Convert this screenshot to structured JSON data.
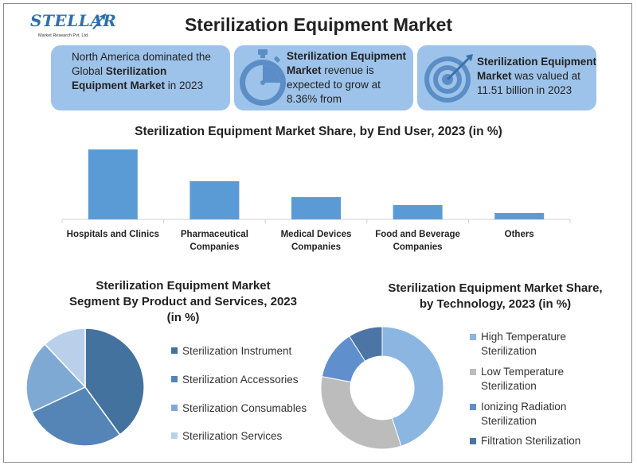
{
  "logo": {
    "name": "STELLAR",
    "subtitle": "Market Research Pvt. Ltd."
  },
  "title": "Sterilization Equipment Market",
  "info_boxes": [
    {
      "pre": "North America dominated the Global ",
      "bold": "Sterilization Equipment Market",
      "post": " in 2023"
    },
    {
      "bold": "Sterilization Equipment Market",
      "post": " revenue is expected to grow at 8.36% from"
    },
    {
      "bold": "Sterilization Equipment Market",
      "post": " was valued at 11.51 billion in 2023"
    }
  ],
  "colors": {
    "box_bg": "#9ec3ea",
    "bar": "#5b9bd5",
    "icon": "#5b8ec6"
  },
  "icons": [
    "stopwatch-icon",
    "target-icon"
  ],
  "chart_data": [
    {
      "type": "bar",
      "title": "Sterilization Equipment Market  Share, by End User, 2023 (in %)",
      "categories": [
        "Hospitals and Clinics",
        "Pharmaceutical Companies",
        "Medical Devices Companies",
        "Food and Beverage Companies",
        "Others"
      ],
      "category_lines": [
        [
          "Hospitals and Clinics"
        ],
        [
          "Pharmaceutical",
          "Companies"
        ],
        [
          "Medical Devices",
          "Companies"
        ],
        [
          "Food and Beverage",
          "Companies"
        ],
        [
          "Others"
        ]
      ],
      "values": [
        44,
        24,
        14,
        9,
        4
      ],
      "ylim": [
        0,
        45
      ],
      "grid": false
    },
    {
      "type": "pie",
      "title": "Sterilization Equipment Market Segment By Product and Services, 2023 (in %)",
      "title_lines": [
        "Sterilization Equipment Market",
        "Segment By Product and Services, 2023",
        "(in %)"
      ],
      "legend_position": "right",
      "categories": [
        "Sterilization Instrument",
        "Sterilization Accessories",
        "Sterilization Consumables",
        "Sterilization Services"
      ],
      "values": [
        40,
        28,
        20,
        12
      ],
      "colors": [
        "#44729f",
        "#5485b6",
        "#7ea9d3",
        "#b9cfea"
      ]
    },
    {
      "type": "pie",
      "subtype": "donut",
      "title": "Sterilization Equipment Market Share, by Technology, 2023 (in %)",
      "title_lines": [
        "Sterilization Equipment Market Share,",
        "by Technology, 2023 (in %)"
      ],
      "legend_position": "right",
      "categories": [
        "High Temperature Sterilization",
        "Low Temperature Sterilization",
        "Ionizing Radiation Sterilization",
        "Filtration Sterilization"
      ],
      "category_lines": [
        [
          "High Temperature",
          "Sterilization"
        ],
        [
          "Low Temperature",
          "Sterilization"
        ],
        [
          "Ionizing Radiation",
          "Sterilization"
        ],
        [
          "Filtration Sterilization"
        ]
      ],
      "values": [
        45,
        33,
        13,
        9
      ],
      "colors": [
        "#8bb6e1",
        "#bcbcbc",
        "#5f8fcd",
        "#4c74a4"
      ]
    }
  ]
}
